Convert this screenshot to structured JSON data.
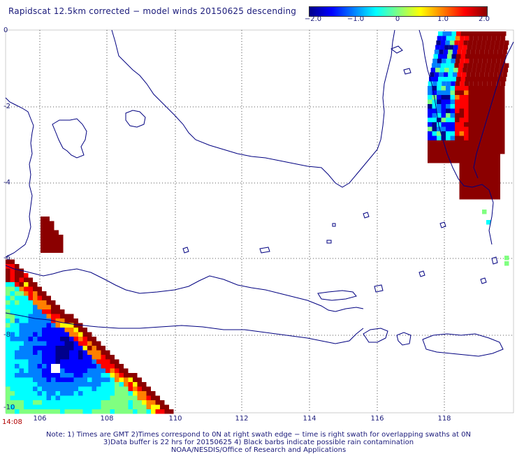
{
  "header": {
    "title": "Rapidscat 12.5km corrected − model winds 20150625 descending"
  },
  "colorbar": {
    "ticks": [
      "−2.0",
      "−1.0",
      "0",
      "1.0",
      "2.0"
    ],
    "tick_values": [
      -2.0,
      -1.0,
      0,
      1.0,
      2.0
    ],
    "min": -2.0,
    "max": 2.0,
    "colors": [
      "#00008b",
      "#0000ff",
      "#0080ff",
      "#00ffff",
      "#80ff80",
      "#ffff00",
      "#ff8000",
      "#ff0000",
      "#8b0000"
    ]
  },
  "axes": {
    "lat_labels": [
      "0",
      "-2",
      "-4",
      "-6",
      "-8",
      "-10"
    ],
    "lon_labels": [
      "106",
      "108",
      "110",
      "112",
      "114",
      "116",
      "118"
    ],
    "lat_range": [
      0,
      -10
    ],
    "lon_range": [
      105,
      119.8
    ],
    "grid": "dotted"
  },
  "timestamp": "14:08",
  "notes": [
    "Note: 1) Times are GMT 2)Times correspond to 0N at right swath edge − time is right swath for overlapping swaths at 0N",
    "3)Data buffer is 22 hrs for 20150625 4) Black barbs indicate possible rain contamination",
    "NOAA/NESDIS/Office of Research and Applications"
  ],
  "coastline_color": "#000080"
}
